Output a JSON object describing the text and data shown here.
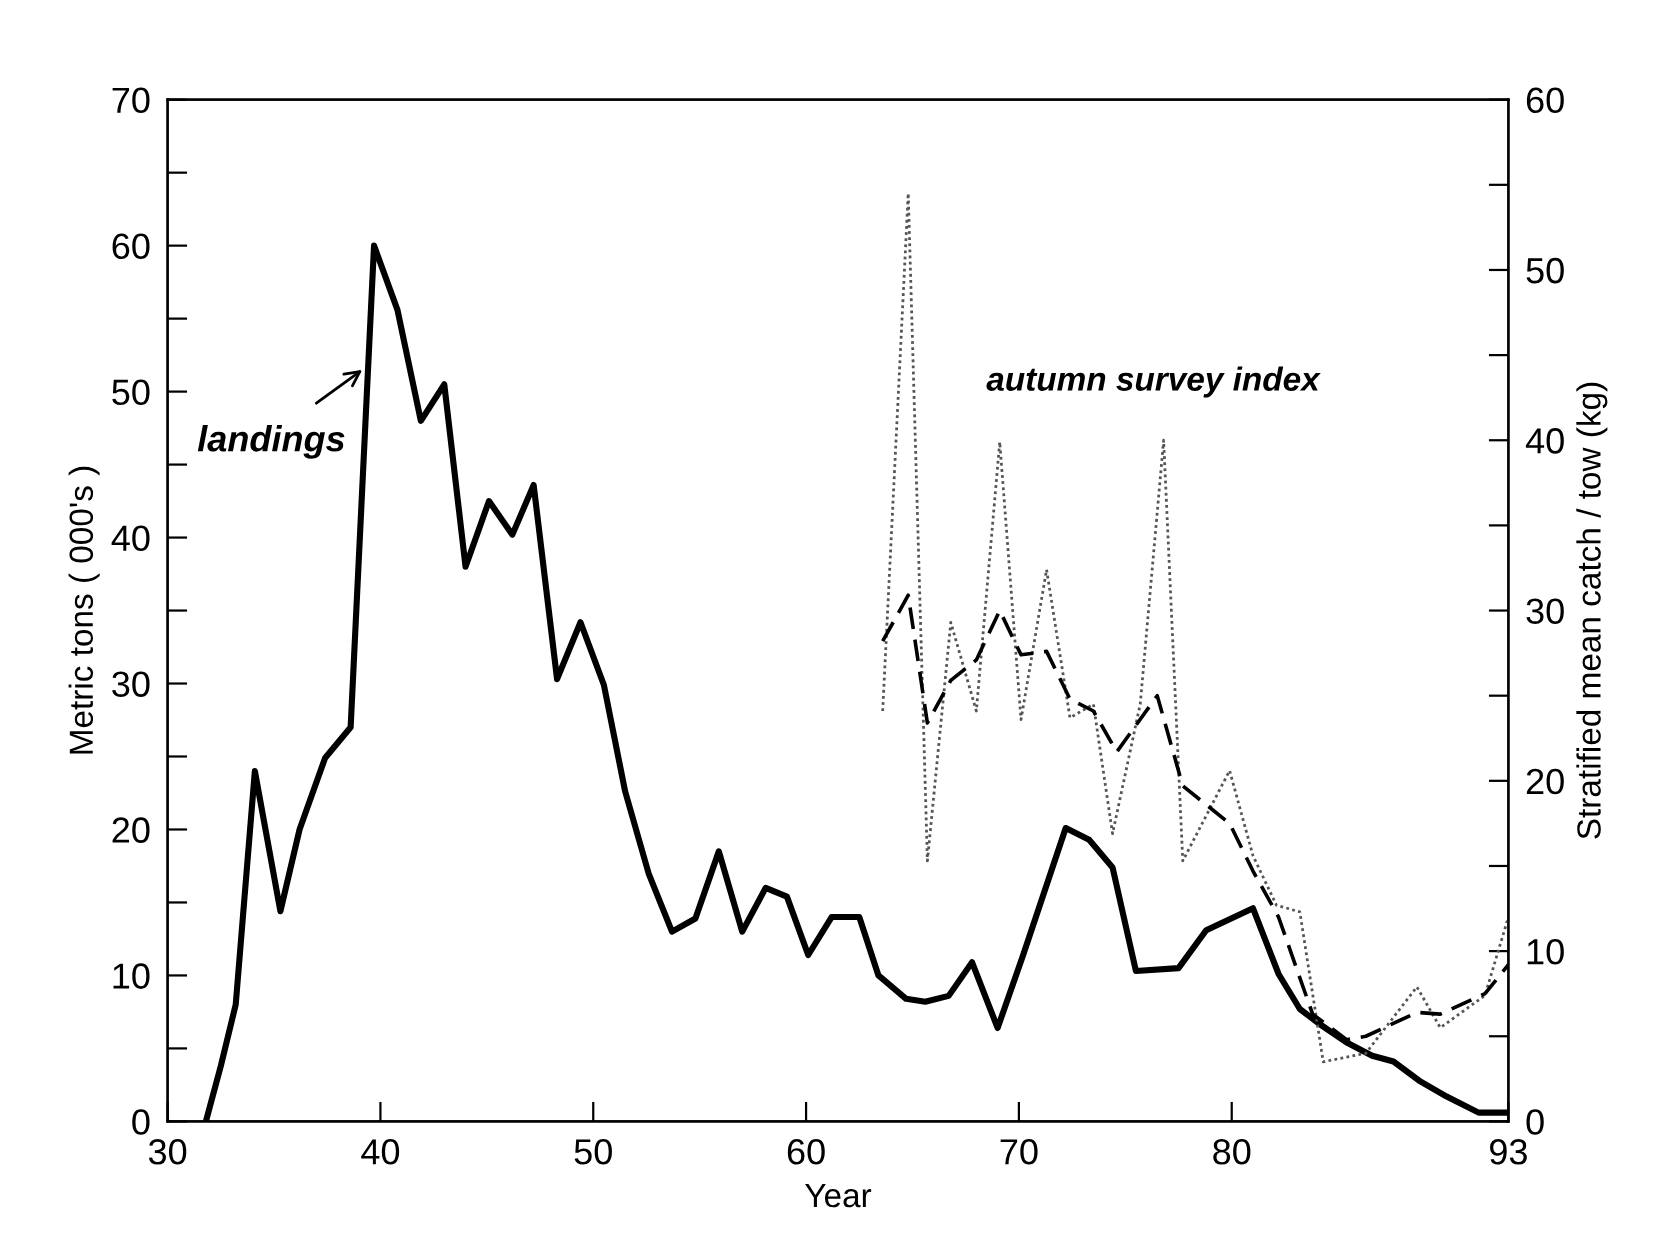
{
  "chart_data": {
    "type": "line",
    "xlabel": "Year",
    "ylabel": "Metric tons ( 000's )",
    "y2label": "Stratified mean catch / tow (kg)",
    "xlim": [
      30,
      93
    ],
    "xticks": [
      30,
      40,
      50,
      60,
      70,
      80,
      93
    ],
    "ylim": [
      0,
      70
    ],
    "yticks": [
      0,
      {
        "value": 5,
        "label": null
      },
      10,
      {
        "value": 15,
        "label": null
      },
      20,
      {
        "value": 25,
        "label": null
      },
      30,
      {
        "value": 35,
        "label": null
      },
      40,
      {
        "value": 45,
        "label": null
      },
      50,
      {
        "value": 55,
        "label": null
      },
      60,
      {
        "value": 65,
        "label": null
      },
      70
    ],
    "y2lim": [
      0,
      60
    ],
    "y2ticks": [
      0,
      {
        "value": 5,
        "label": null
      },
      10,
      {
        "value": 15,
        "label": null
      },
      20,
      {
        "value": 25,
        "label": null
      },
      30,
      {
        "value": 35,
        "label": null
      },
      40,
      {
        "value": 45,
        "label": null
      },
      50,
      {
        "value": 55,
        "label": null
      },
      60
    ],
    "grid": false,
    "marker": "none",
    "series": [
      {
        "name": "landings",
        "color": "#000000",
        "line_style": "solid",
        "x": [
          31.8,
          32.5,
          33.2,
          34.1,
          35.3,
          36.2,
          37.4,
          38.6,
          39.7,
          40.8,
          41.9,
          43.0,
          44.0,
          45.1,
          46.2,
          47.2,
          48.3,
          49.4,
          50.5,
          51.5,
          52.6,
          53.7,
          54.8,
          55.9,
          57.0,
          58.1,
          59.1,
          60.1,
          61.2,
          62.5,
          63.4,
          64.7,
          65.6,
          66.7,
          67.8,
          69.0,
          70.2,
          72.2,
          73.3,
          74.4,
          75.5,
          77.5,
          78.8,
          81.0,
          82.2,
          83.2,
          84.1,
          85.4,
          86.6,
          87.6,
          88.8,
          90.1,
          91.6,
          92.9
        ],
        "values": [
          0,
          3.8,
          8,
          24,
          14.4,
          20,
          24.9,
          27,
          60,
          55.6,
          48,
          50.5,
          38,
          42.5,
          40.2,
          43.6,
          30.3,
          34.2,
          29.9,
          22.6,
          17,
          13,
          13.9,
          18.5,
          13,
          16,
          15.4,
          11.4,
          14,
          14,
          10,
          8.4,
          8.2,
          8.6,
          10.9,
          6.4,
          11.4,
          20.1,
          19.3,
          17.4,
          10.3,
          10.5,
          13.1,
          14.6,
          10.1,
          7.7,
          6.7,
          5.4,
          4.5,
          4.1,
          2.8,
          1.7,
          0.6,
          0.6
        ]
      },
      {
        "name": "autumn survey index",
        "color": "#555555",
        "line_style": "dotted",
        "axis": "y2",
        "x": [
          63.6,
          64.8,
          65.7,
          66.8,
          68.0,
          69.1,
          70.1,
          71.3,
          72.4,
          73.5,
          74.4,
          75.7,
          76.8,
          77.7,
          79.9,
          81.0,
          82.1,
          83.2,
          84.3,
          86.3,
          88.7,
          89.8,
          91.9,
          93.0
        ],
        "values": [
          24.1,
          54.5,
          15.3,
          29.3,
          24.1,
          39.9,
          23.6,
          32.4,
          23.7,
          24.5,
          16.9,
          24.5,
          40.0,
          15.3,
          20.6,
          15.6,
          12.7,
          12.3,
          3.5,
          4.0,
          7.9,
          5.5,
          7.4,
          12.0
        ]
      },
      {
        "color": "#000000",
        "line_style": "dashed",
        "axis": "y2",
        "x": [
          63.6,
          64.8,
          65.7,
          66.8,
          68.0,
          69.1,
          70.1,
          71.3,
          72.4,
          73.5,
          74.6,
          76.5,
          77.7,
          79.9,
          81.0,
          82.2,
          83.8,
          85.4,
          86.3,
          88.7,
          89.8,
          91.9,
          93.0
        ],
        "values": [
          28.2,
          30.9,
          23.4,
          25.9,
          27.1,
          30.0,
          27.4,
          27.6,
          24.8,
          24.1,
          21.7,
          25.0,
          19.7,
          17.5,
          14.7,
          12.0,
          6.3,
          4.8,
          5.0,
          6.4,
          6.3,
          7.5,
          9.2
        ]
      }
    ]
  }
}
